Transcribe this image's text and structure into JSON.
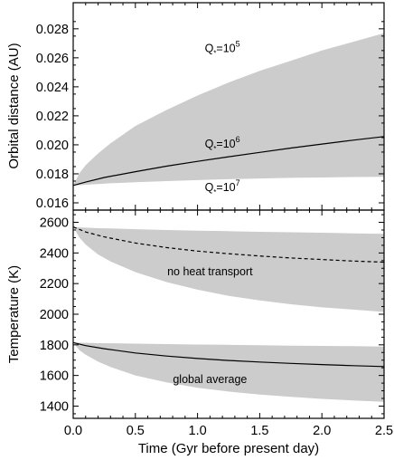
{
  "chart_data": [
    {
      "type": "area",
      "ylabel": "Orbital distance (AU)",
      "xlim": [
        0,
        2.5
      ],
      "ylim": [
        0.0155,
        0.0298
      ],
      "yticks": [
        0.016,
        0.018,
        0.02,
        0.022,
        0.024,
        0.026,
        0.028
      ],
      "ytick_labels": [
        "0.016",
        "0.018",
        "0.020",
        "0.022",
        "0.024",
        "0.026",
        "0.028"
      ],
      "grid": false,
      "fill_color": "#cccccc",
      "line_color": "#000000",
      "band": {
        "x": [
          0,
          0.05,
          0.1,
          0.2,
          0.3,
          0.5,
          0.75,
          1.0,
          1.25,
          1.5,
          1.75,
          2.0,
          2.25,
          2.5
        ],
        "upper": [
          0.0172,
          0.01805,
          0.0186,
          0.0194,
          0.0201,
          0.0213,
          0.0224,
          0.0234,
          0.0243,
          0.0251,
          0.0258,
          0.0265,
          0.0271,
          0.0277
        ],
        "lower": [
          0.0172,
          0.01722,
          0.01725,
          0.0173,
          0.01735,
          0.01742,
          0.0175,
          0.01757,
          0.01763,
          0.01768,
          0.01772,
          0.01775,
          0.01778,
          0.0178
        ]
      },
      "series": [
        {
          "x": [
            0,
            0.1,
            0.25,
            0.5,
            0.75,
            1.0,
            1.25,
            1.5,
            1.75,
            2.0,
            2.25,
            2.5
          ],
          "values": [
            0.0172,
            0.01743,
            0.01775,
            0.01815,
            0.01853,
            0.01886,
            0.01918,
            0.01948,
            0.01978,
            0.02005,
            0.02032,
            0.02057
          ],
          "style": "solid"
        }
      ],
      "annotations": {
        "q5": {
          "prefix": "Q",
          "sub": "*",
          "eq": "=10",
          "sup": "5",
          "x": 1.2,
          "y": 0.0264
        },
        "q6": {
          "prefix": "Q",
          "sub": "*",
          "eq": "=10",
          "sup": "6",
          "x": 1.2,
          "y": 0.0198
        },
        "q7": {
          "prefix": "Q",
          "sub": "*",
          "eq": "=10",
          "sup": "7",
          "x": 1.2,
          "y": 0.0168
        }
      }
    },
    {
      "type": "area",
      "xlabel": "Time (Gyr before present day)",
      "ylabel": "Temperature (K)",
      "xlim": [
        0,
        2.5
      ],
      "ylim": [
        1320,
        2680
      ],
      "xticks": [
        0,
        0.5,
        1.0,
        1.5,
        2.0,
        2.5
      ],
      "xtick_labels": [
        "0.0",
        "0.5",
        "1.0",
        "1.5",
        "2.0",
        "2.5"
      ],
      "yticks": [
        1400,
        1600,
        1800,
        2000,
        2200,
        2400,
        2600
      ],
      "ytick_labels": [
        "1400",
        "1600",
        "1800",
        "2000",
        "2200",
        "2400",
        "2600"
      ],
      "grid": false,
      "fill_color": "#cccccc",
      "line_color": "#000000",
      "bands": [
        {
          "x": [
            0,
            0.05,
            0.1,
            0.2,
            0.3,
            0.5,
            0.75,
            1.0,
            1.25,
            1.5,
            1.75,
            2.0,
            2.25,
            2.5
          ],
          "upper": [
            2570,
            2567,
            2565,
            2562,
            2560,
            2555,
            2550,
            2546,
            2542,
            2538,
            2535,
            2532,
            2528,
            2525
          ],
          "lower": [
            2570,
            2500,
            2455,
            2390,
            2345,
            2275,
            2210,
            2160,
            2120,
            2090,
            2065,
            2045,
            2030,
            2015
          ]
        },
        {
          "x": [
            0,
            0.05,
            0.1,
            0.2,
            0.3,
            0.5,
            0.75,
            1.0,
            1.25,
            1.5,
            1.75,
            2.0,
            2.25,
            2.5
          ],
          "upper": [
            1815,
            1814,
            1813,
            1811,
            1810,
            1808,
            1805,
            1802,
            1800,
            1797,
            1795,
            1793,
            1791,
            1789
          ],
          "lower": [
            1815,
            1765,
            1735,
            1690,
            1655,
            1600,
            1555,
            1520,
            1495,
            1475,
            1460,
            1447,
            1437,
            1428
          ]
        }
      ],
      "series": [
        {
          "name": "no heat transport",
          "x": [
            0,
            0.1,
            0.25,
            0.5,
            0.75,
            1.0,
            1.25,
            1.5,
            1.75,
            2.0,
            2.25,
            2.5
          ],
          "values": [
            2570,
            2537,
            2505,
            2465,
            2435,
            2412,
            2395,
            2380,
            2367,
            2357,
            2347,
            2340
          ],
          "style": "dashed"
        },
        {
          "name": "global average",
          "x": [
            0,
            0.1,
            0.25,
            0.5,
            0.75,
            1.0,
            1.25,
            1.5,
            1.75,
            2.0,
            2.25,
            2.5
          ],
          "values": [
            1815,
            1795,
            1775,
            1747,
            1727,
            1711,
            1698,
            1688,
            1679,
            1671,
            1664,
            1658
          ],
          "style": "solid"
        }
      ],
      "annotations": {
        "no_heat": {
          "text": "no heat transport",
          "x": 1.1,
          "y": 2255
        },
        "global": {
          "text": "global average",
          "x": 1.1,
          "y": 1550
        }
      }
    }
  ]
}
